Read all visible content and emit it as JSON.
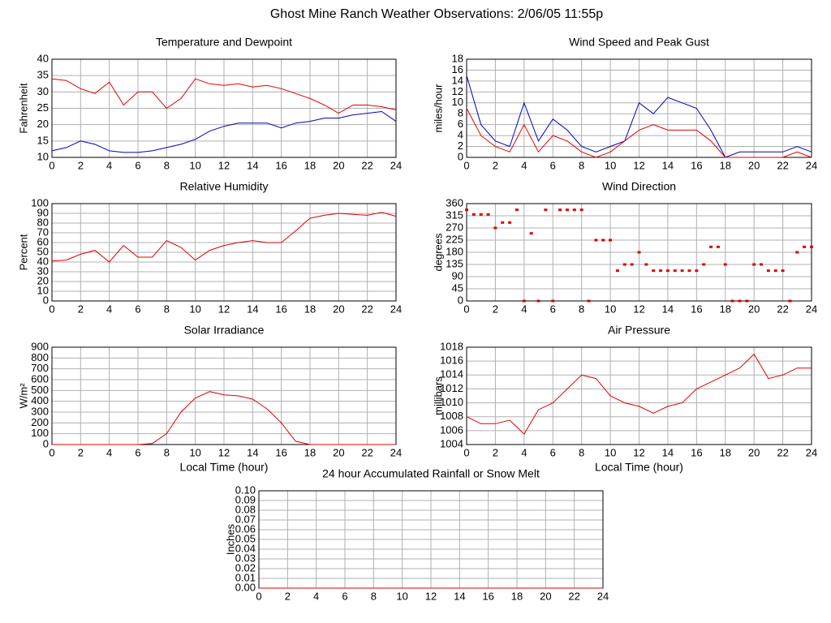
{
  "title": "Ghost Mine Ranch Weather Observations: 2/06/05 11:55p",
  "chart_data": [
    {
      "type": "line",
      "title": "Temperature and Dewpoint",
      "y_label": "Fahrenheit",
      "x": [
        0,
        1,
        2,
        3,
        4,
        5,
        6,
        7,
        8,
        9,
        10,
        11,
        12,
        13,
        14,
        15,
        16,
        17,
        18,
        19,
        20,
        21,
        22,
        23,
        24
      ],
      "series": [
        {
          "color": "#e00000",
          "values": [
            34,
            33.5,
            31,
            29.5,
            33,
            26,
            30,
            30,
            25,
            28,
            34,
            32.5,
            32,
            32.5,
            31.5,
            32,
            31,
            29.5,
            28,
            26,
            23.5,
            26,
            26,
            25.5,
            24.5
          ]
        },
        {
          "color": "#0000c0",
          "values": [
            12,
            13,
            15,
            14,
            12,
            11.5,
            11.5,
            12,
            13,
            14,
            15.5,
            18,
            19.5,
            20.5,
            20.5,
            20.5,
            19,
            20.5,
            21,
            22,
            22,
            23,
            23.5,
            24,
            21
          ]
        }
      ],
      "xlim": [
        0,
        24
      ],
      "xticks": [
        0,
        2,
        4,
        6,
        8,
        10,
        12,
        14,
        16,
        18,
        20,
        22,
        24
      ],
      "ylim": [
        10,
        40
      ],
      "yticks": [
        10,
        15,
        20,
        25,
        30,
        35,
        40
      ],
      "grid": true
    },
    {
      "type": "line",
      "title": "Wind Speed and Peak Gust",
      "y_label": "miles/hour",
      "x": [
        0,
        1,
        2,
        3,
        4,
        5,
        6,
        7,
        8,
        9,
        10,
        11,
        12,
        13,
        14,
        15,
        16,
        17,
        18,
        19,
        20,
        21,
        22,
        23,
        24
      ],
      "series": [
        {
          "color": "#0000c0",
          "values": [
            15,
            6,
            3,
            2,
            10,
            3,
            7,
            5,
            2,
            1,
            2,
            3,
            10,
            8,
            11,
            10,
            9,
            5,
            0,
            1,
            1,
            1,
            1,
            2,
            1
          ]
        },
        {
          "color": "#e00000",
          "values": [
            9,
            4,
            2,
            1,
            6,
            1,
            4,
            3,
            1,
            0,
            1,
            3,
            5,
            6,
            5,
            5,
            5,
            3,
            0,
            0,
            0,
            0,
            0,
            1,
            0
          ]
        }
      ],
      "xlim": [
        0,
        24
      ],
      "xticks": [
        0,
        2,
        4,
        6,
        8,
        10,
        12,
        14,
        16,
        18,
        20,
        22,
        24
      ],
      "ylim": [
        0,
        18
      ],
      "yticks": [
        0,
        2,
        4,
        6,
        8,
        10,
        12,
        14,
        16,
        18
      ],
      "grid": true
    },
    {
      "type": "line",
      "title": "Relative Humidity",
      "y_label": "Percent",
      "x": [
        0,
        1,
        2,
        3,
        4,
        5,
        6,
        7,
        8,
        9,
        10,
        11,
        12,
        13,
        14,
        15,
        16,
        17,
        18,
        19,
        20,
        21,
        22,
        23,
        24
      ],
      "series": [
        {
          "color": "#e00000",
          "values": [
            41,
            42,
            48,
            52,
            40,
            57,
            45,
            45,
            62,
            55,
            42,
            52,
            57,
            60,
            62,
            60,
            60,
            72,
            85,
            88,
            90,
            89,
            88,
            91,
            87
          ]
        }
      ],
      "xlim": [
        0,
        24
      ],
      "xticks": [
        0,
        2,
        4,
        6,
        8,
        10,
        12,
        14,
        16,
        18,
        20,
        22,
        24
      ],
      "ylim": [
        0,
        100
      ],
      "yticks": [
        0,
        10,
        20,
        30,
        40,
        50,
        60,
        70,
        80,
        90,
        100
      ],
      "grid": true
    },
    {
      "type": "scatter",
      "title": "Wind Direction",
      "y_label": "degrees",
      "x": [
        0,
        0.5,
        1,
        1.5,
        2,
        2.5,
        3,
        3.5,
        4,
        4.5,
        5,
        5.5,
        6,
        6.5,
        7,
        7.5,
        8,
        8.5,
        9,
        9.5,
        10,
        10.5,
        11,
        11.5,
        12,
        12.5,
        13,
        13.5,
        14,
        14.5,
        15,
        15.5,
        16,
        16.5,
        17,
        17.5,
        18,
        18.5,
        19,
        19.5,
        20,
        20.5,
        21,
        21.5,
        22,
        22.5,
        23,
        23.5,
        24
      ],
      "series": [
        {
          "color": "#e00000",
          "values": [
            337,
            320,
            320,
            320,
            270,
            290,
            290,
            337,
            0,
            250,
            0,
            337,
            0,
            337,
            337,
            337,
            337,
            0,
            225,
            225,
            225,
            112,
            135,
            135,
            180,
            135,
            112,
            112,
            112,
            112,
            112,
            112,
            112,
            135,
            200,
            200,
            135,
            0,
            0,
            0,
            135,
            135,
            112,
            112,
            112,
            0,
            180,
            200,
            200
          ]
        }
      ],
      "xlim": [
        0,
        24
      ],
      "xticks": [
        0,
        2,
        4,
        6,
        8,
        10,
        12,
        14,
        16,
        18,
        20,
        22,
        24
      ],
      "ylim": [
        0,
        360
      ],
      "yticks": [
        0,
        45,
        90,
        135,
        180,
        225,
        270,
        315,
        360
      ],
      "grid": true
    },
    {
      "type": "line",
      "title": "Solar Irradiance",
      "y_label": "W/m²",
      "x_label": "Local Time (hour)",
      "x": [
        0,
        1,
        2,
        3,
        4,
        5,
        6,
        7,
        8,
        9,
        10,
        11,
        12,
        13,
        14,
        15,
        16,
        17,
        18,
        19,
        20,
        21,
        22,
        23,
        24
      ],
      "series": [
        {
          "color": "#e00000",
          "values": [
            0,
            0,
            0,
            0,
            0,
            0,
            0,
            10,
            100,
            300,
            430,
            490,
            460,
            450,
            420,
            330,
            200,
            30,
            0,
            0,
            0,
            0,
            0,
            0,
            0
          ]
        }
      ],
      "xlim": [
        0,
        24
      ],
      "xticks": [
        0,
        2,
        4,
        6,
        8,
        10,
        12,
        14,
        16,
        18,
        20,
        22,
        24
      ],
      "ylim": [
        0,
        900
      ],
      "yticks": [
        0,
        100,
        200,
        300,
        400,
        500,
        600,
        700,
        800,
        900
      ],
      "grid": true
    },
    {
      "type": "line",
      "title": "Air Pressure",
      "y_label": "millibars",
      "x_label": "Local Time (hour)",
      "x": [
        0,
        1,
        2,
        3,
        4,
        5,
        6,
        7,
        8,
        9,
        10,
        11,
        12,
        13,
        14,
        15,
        16,
        17,
        18,
        19,
        20,
        21,
        22,
        23,
        24
      ],
      "series": [
        {
          "color": "#e00000",
          "values": [
            1008,
            1007,
            1007,
            1007.5,
            1005.5,
            1009,
            1010,
            1012,
            1014,
            1013.5,
            1011,
            1010,
            1009.5,
            1008.5,
            1009.5,
            1010,
            1012,
            1013,
            1014,
            1015,
            1017,
            1013.5,
            1014,
            1015,
            1015
          ]
        }
      ],
      "xlim": [
        0,
        24
      ],
      "xticks": [
        0,
        2,
        4,
        6,
        8,
        10,
        12,
        14,
        16,
        18,
        20,
        22,
        24
      ],
      "ylim": [
        1004,
        1018
      ],
      "yticks": [
        1004,
        1006,
        1008,
        1010,
        1012,
        1014,
        1016,
        1018
      ],
      "grid": true
    },
    {
      "type": "line",
      "title": "24 hour Accumulated Rainfall or Snow Melt",
      "y_label": "Inches",
      "x": [
        0,
        2,
        4,
        6,
        8,
        10,
        12,
        14,
        16,
        18,
        20,
        22,
        24
      ],
      "series": [
        {
          "color": "#e00000",
          "values": [
            0,
            0,
            0,
            0,
            0,
            0,
            0,
            0,
            0,
            0,
            0,
            0,
            0
          ]
        }
      ],
      "xlim": [
        0,
        24
      ],
      "xticks": [
        0,
        2,
        4,
        6,
        8,
        10,
        12,
        14,
        16,
        18,
        20,
        22,
        24
      ],
      "ylim": [
        0,
        0.1
      ],
      "yticks": [
        {
          "value": 0,
          "label": "0.00"
        },
        0.01,
        0.02,
        0.03,
        0.04,
        0.05,
        0.06,
        0.07,
        0.08,
        0.09,
        {
          "value": 0.1,
          "label": "0.10"
        }
      ],
      "grid": true
    }
  ]
}
